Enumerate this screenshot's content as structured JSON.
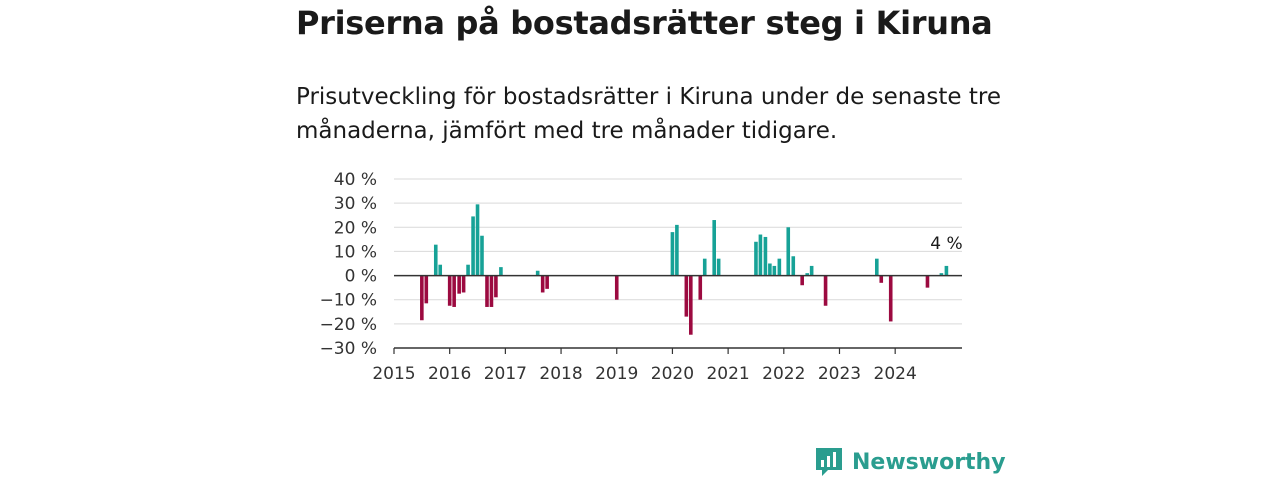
{
  "header": {
    "title": "Priserna på bostadsrätter steg i Kiruna",
    "subtitle": "Prisutveckling för bostadsrätter i Kiruna under de senaste tre månaderna, jämfört med tre månader tidigare."
  },
  "brand": {
    "name": "Newsworthy",
    "icon": "newsworthy-logo-icon"
  },
  "colors": {
    "positive": "#17a297",
    "negative": "#9c0a40",
    "grid": "#d9d9d9",
    "axis": "#333333",
    "brand": "#2a9d8f"
  },
  "chart_data": {
    "type": "bar",
    "title": "",
    "xlabel": "",
    "ylabel": "",
    "xlim": [
      2015,
      2025.2
    ],
    "ylim": [
      -30,
      40
    ],
    "yticks": [
      40,
      30,
      20,
      10,
      0,
      -10,
      -20,
      -30
    ],
    "ytick_labels": [
      "40 %",
      "30 %",
      "20 %",
      "10 %",
      "0 %",
      "−10 %",
      "−20 %",
      "−30 %"
    ],
    "xticks": [
      2015,
      2016,
      2017,
      2018,
      2019,
      2020,
      2021,
      2022,
      2023,
      2024
    ],
    "xtick_labels": [
      "2015",
      "2016",
      "2017",
      "2018",
      "2019",
      "2020",
      "2021",
      "2022",
      "2023",
      "2024"
    ],
    "grid": true,
    "annotation": {
      "text": "4 %",
      "x": 2024.92,
      "y": 4
    },
    "series": [
      {
        "values": [
          {
            "x": 2015.5,
            "y": -18.5
          },
          {
            "x": 2015.58,
            "y": -11.5
          },
          {
            "x": 2015.75,
            "y": 12.8
          },
          {
            "x": 2015.83,
            "y": 4.5
          },
          {
            "x": 2016.0,
            "y": -12.5
          },
          {
            "x": 2016.08,
            "y": -13.0
          },
          {
            "x": 2016.17,
            "y": -7.5
          },
          {
            "x": 2016.25,
            "y": -7.0
          },
          {
            "x": 2016.33,
            "y": 4.5
          },
          {
            "x": 2016.42,
            "y": 24.5
          },
          {
            "x": 2016.5,
            "y": 29.5
          },
          {
            "x": 2016.58,
            "y": 16.5
          },
          {
            "x": 2016.67,
            "y": -13.0
          },
          {
            "x": 2016.75,
            "y": -13.0
          },
          {
            "x": 2016.83,
            "y": -9.0
          },
          {
            "x": 2016.92,
            "y": 3.5
          },
          {
            "x": 2017.58,
            "y": 2.0
          },
          {
            "x": 2017.67,
            "y": -7.0
          },
          {
            "x": 2017.75,
            "y": -5.5
          },
          {
            "x": 2019.0,
            "y": -10.0
          },
          {
            "x": 2020.0,
            "y": 18.0
          },
          {
            "x": 2020.08,
            "y": 21.0
          },
          {
            "x": 2020.25,
            "y": -17.0
          },
          {
            "x": 2020.33,
            "y": -24.5
          },
          {
            "x": 2020.5,
            "y": -10.0
          },
          {
            "x": 2020.58,
            "y": 7.0
          },
          {
            "x": 2020.75,
            "y": 23.0
          },
          {
            "x": 2020.83,
            "y": 7.0
          },
          {
            "x": 2021.5,
            "y": 14.0
          },
          {
            "x": 2021.58,
            "y": 17.0
          },
          {
            "x": 2021.67,
            "y": 16.0
          },
          {
            "x": 2021.75,
            "y": 5.0
          },
          {
            "x": 2021.83,
            "y": 4.0
          },
          {
            "x": 2021.92,
            "y": 7.0
          },
          {
            "x": 2022.08,
            "y": 20.0
          },
          {
            "x": 2022.17,
            "y": 8.0
          },
          {
            "x": 2022.33,
            "y": -4.0
          },
          {
            "x": 2022.42,
            "y": 1.0
          },
          {
            "x": 2022.5,
            "y": 4.0
          },
          {
            "x": 2022.75,
            "y": -12.5
          },
          {
            "x": 2023.67,
            "y": 7.0
          },
          {
            "x": 2023.75,
            "y": -3.0
          },
          {
            "x": 2023.92,
            "y": -19.0
          },
          {
            "x": 2024.58,
            "y": -5.0
          },
          {
            "x": 2024.83,
            "y": 1.0
          },
          {
            "x": 2024.92,
            "y": 4.0
          }
        ]
      }
    ]
  }
}
